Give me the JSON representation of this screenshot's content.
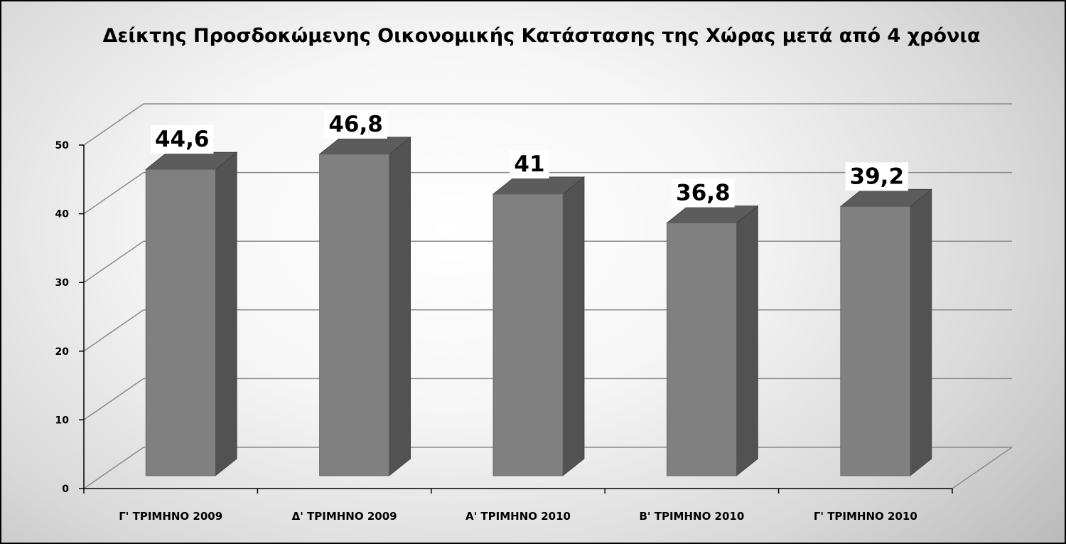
{
  "chart_data": {
    "type": "bar",
    "title": "Δείκτης Προσδοκώμενης Οικονομικής Κατάστασης της Χώρας μετά από 4 χρόνια",
    "categories": [
      "Γ' ΤΡΙΜΗΝΟ 2009",
      "Δ' ΤΡΙΜΗΝΟ 2009",
      "Α' ΤΡΙΜΗΝΟ 2010",
      "Β' ΤΡΙΜΗΝΟ 2010",
      "Γ' ΤΡΙΜΗΝΟ 2010"
    ],
    "values": [
      44.6,
      46.8,
      41,
      36.8,
      39.2
    ],
    "data_labels": [
      "44,6",
      "46,8",
      "41",
      "36,8",
      "39,2"
    ],
    "ylim": [
      0,
      50
    ],
    "yticks": [
      0,
      10,
      20,
      30,
      40,
      50
    ],
    "xlabel": "",
    "ylabel": "",
    "grid": true,
    "legend": "none",
    "three_d": true,
    "colors": {
      "bar_front": "#808080",
      "bar_side": "#525252",
      "bar_top": "#5c5c5c",
      "gridline": "#8a8a8a",
      "axis": "#000000",
      "label_background": "#ffffff"
    }
  }
}
